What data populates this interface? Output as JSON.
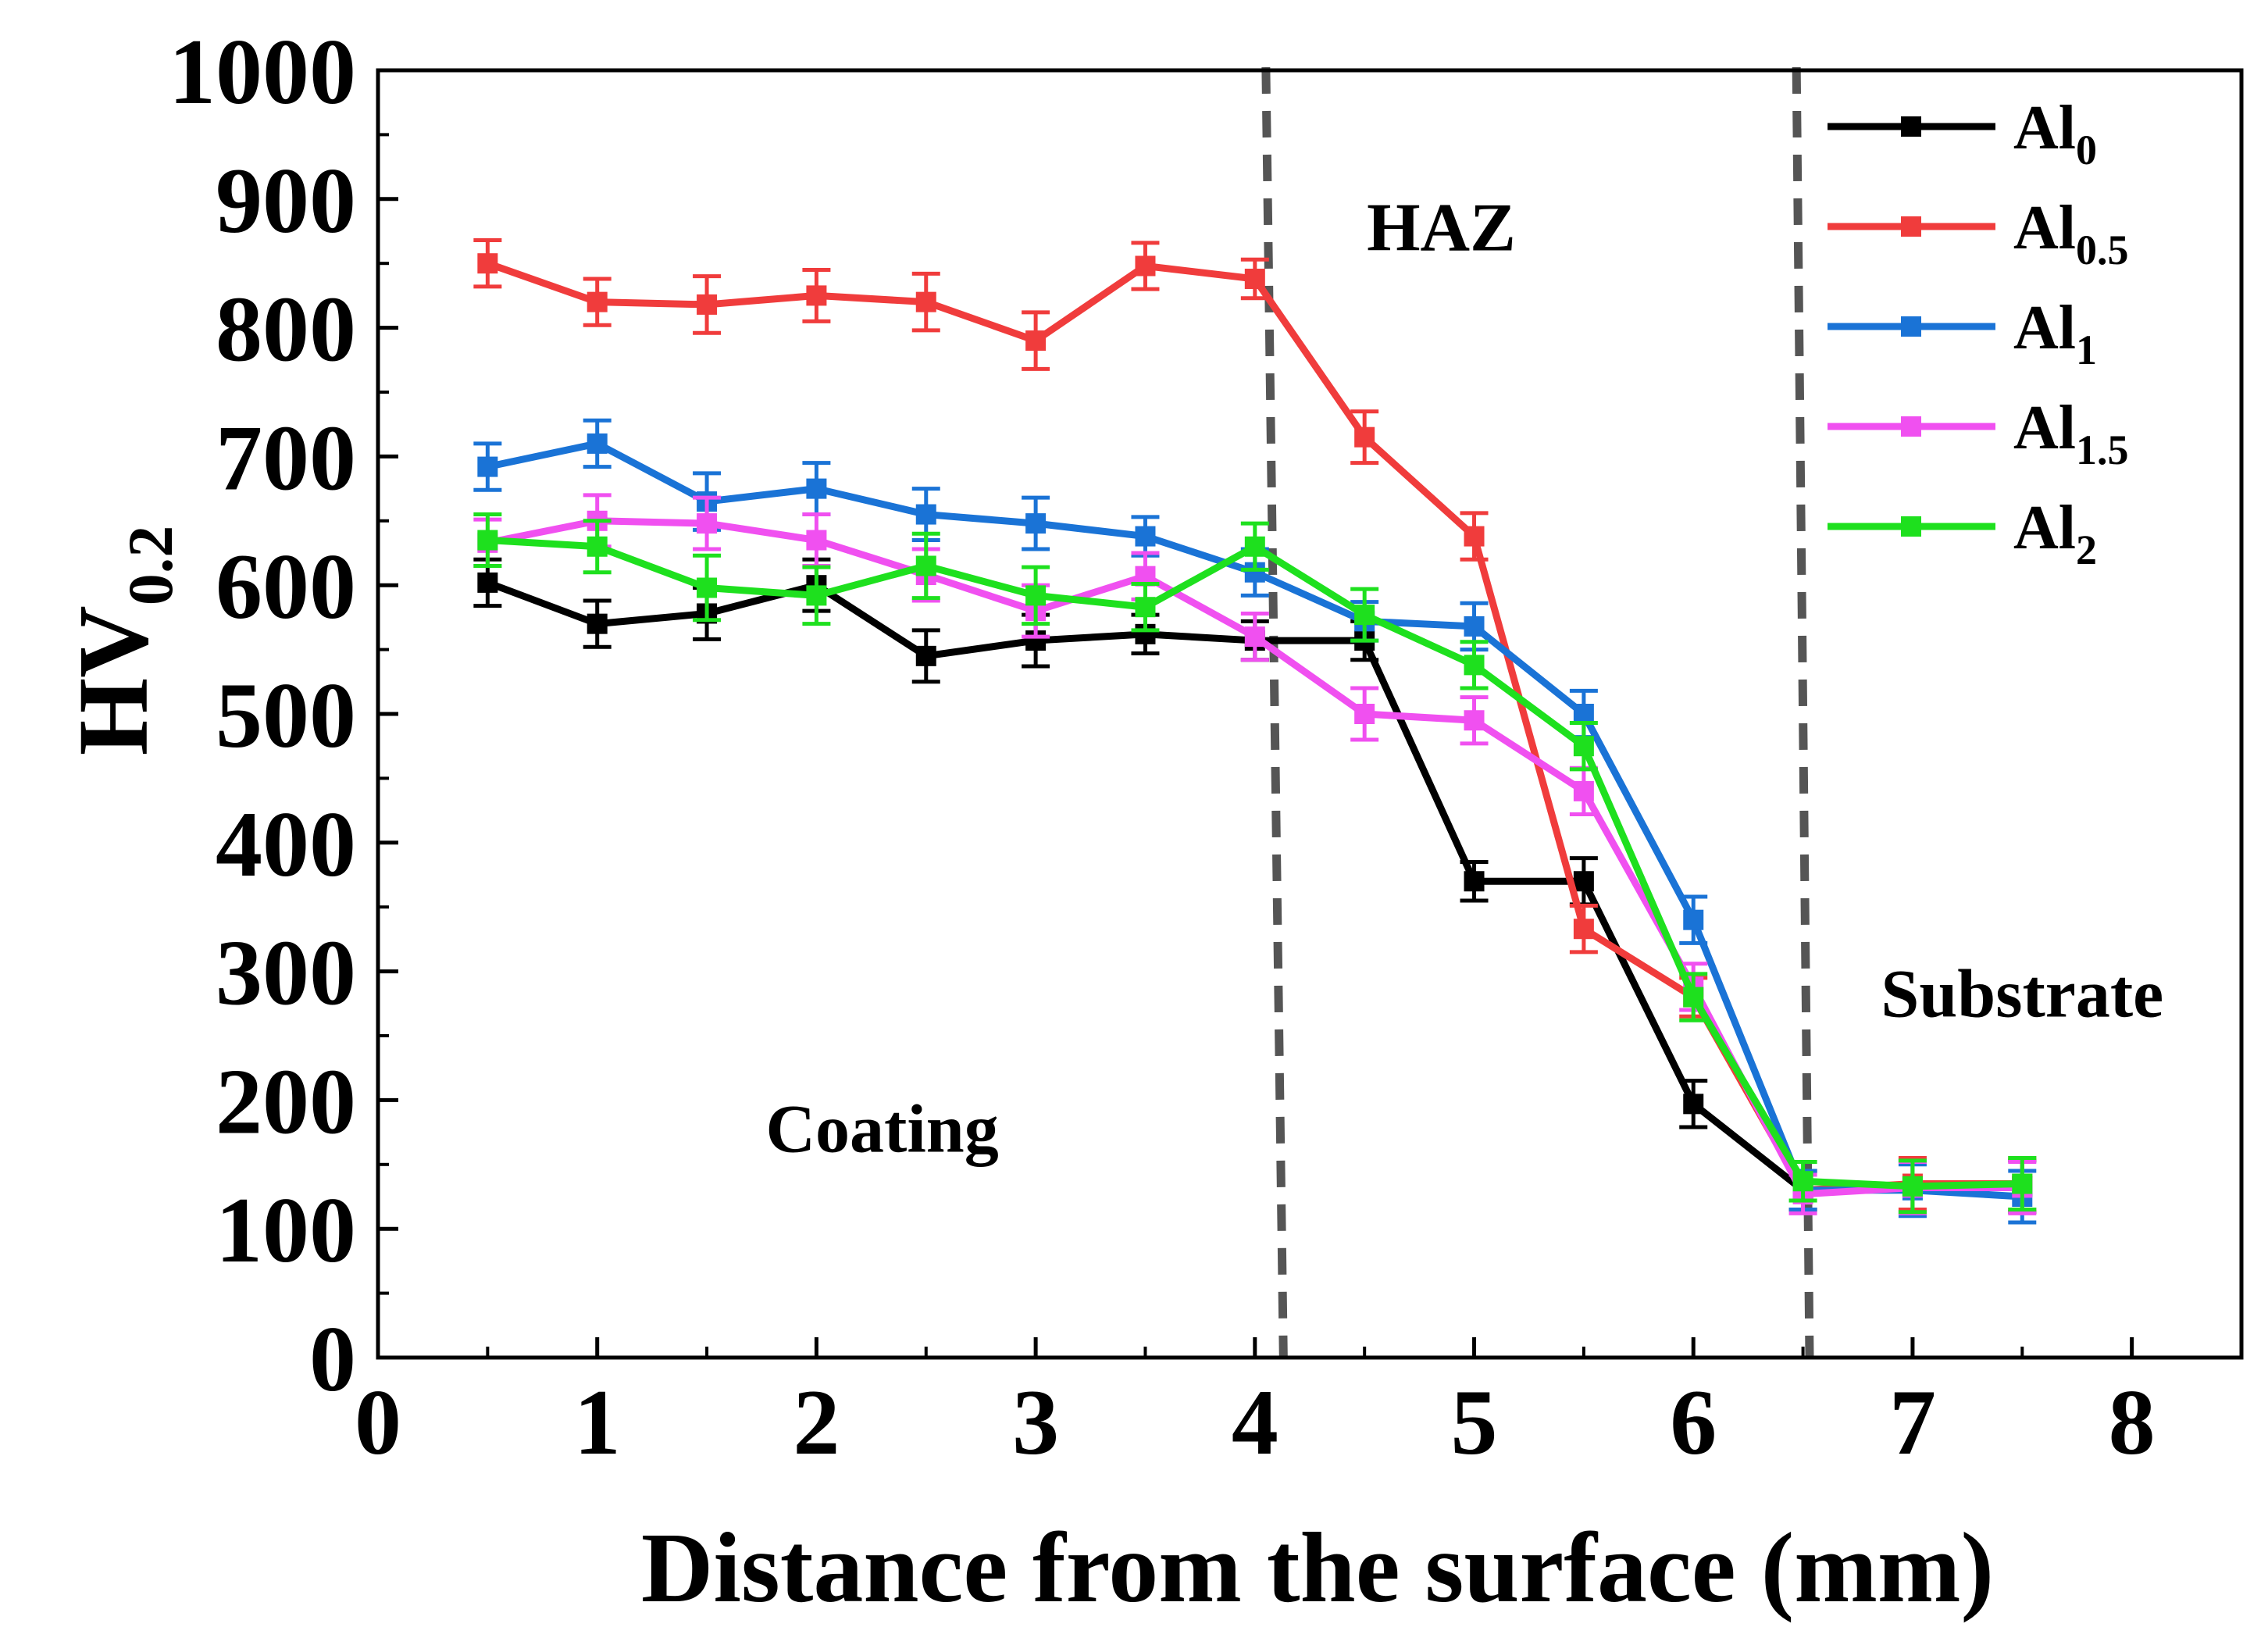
{
  "chart_data": {
    "type": "line",
    "title": "",
    "xlabel": "Distance from the surface (mm)",
    "ylabel": {
      "main": "HV",
      "sub": "0.2"
    },
    "xlim": [
      0,
      8.5
    ],
    "ylim": [
      0,
      1000
    ],
    "x_ticks": [
      0,
      1,
      2,
      3,
      4,
      5,
      6,
      7,
      8
    ],
    "x_tick_labels": [
      "0",
      "1",
      "2",
      "3",
      "4",
      "5",
      "6",
      "7",
      "8"
    ],
    "y_ticks": [
      0,
      100,
      200,
      300,
      400,
      500,
      600,
      700,
      800,
      900,
      1000
    ],
    "y_tick_labels": [
      "0",
      "100",
      "200",
      "300",
      "400",
      "500",
      "600",
      "700",
      "800",
      "900",
      "1000"
    ],
    "grid": false,
    "legend_position": "top-right",
    "region_labels": [
      {
        "text": "Coating",
        "x": 2.3,
        "y": 160
      },
      {
        "text": "HAZ",
        "x": 4.85,
        "y": 860
      },
      {
        "text": "Substrate",
        "x": 7.5,
        "y": 265
      }
    ],
    "boundaries": [
      {
        "x_top": 4.05,
        "x_bottom": 4.13
      },
      {
        "x_top": 6.47,
        "x_bottom": 6.53
      }
    ],
    "series": [
      {
        "name": "Al",
        "subscript": "0",
        "color": "#000000",
        "x": [
          0.5,
          1,
          1.5,
          2,
          2.5,
          3,
          3.5,
          4,
          4.5,
          5,
          5.5,
          6,
          6.5,
          7,
          7.5
        ],
        "values": [
          602,
          570,
          578,
          600,
          545,
          557,
          562,
          557,
          557,
          370,
          370,
          197,
          130,
          133,
          133
        ],
        "errors": [
          18,
          18,
          20,
          20,
          20,
          20,
          15,
          15,
          15,
          15,
          18,
          18,
          15,
          20,
          20
        ]
      },
      {
        "name": "Al",
        "subscript": "0.5",
        "color": "#f03c3c",
        "x": [
          0.5,
          1,
          1.5,
          2,
          2.5,
          3,
          3.5,
          4,
          4.5,
          5,
          5.5,
          6,
          6.5,
          7,
          7.5
        ],
        "values": [
          850,
          820,
          818,
          825,
          820,
          790,
          848,
          838,
          715,
          638,
          333,
          280,
          130,
          135,
          135
        ],
        "errors": [
          18,
          18,
          22,
          20,
          22,
          22,
          18,
          15,
          20,
          18,
          18,
          15,
          15,
          20,
          20
        ]
      },
      {
        "name": "Al",
        "subscript": "1",
        "color": "#1a73d6",
        "x": [
          0.5,
          1,
          1.5,
          2,
          2.5,
          3,
          3.5,
          4,
          4.5,
          5,
          5.5,
          6,
          6.5,
          7,
          7.5
        ],
        "values": [
          692,
          710,
          665,
          675,
          655,
          648,
          638,
          610,
          572,
          568,
          500,
          340,
          130,
          130,
          125
        ],
        "errors": [
          18,
          18,
          22,
          20,
          20,
          20,
          15,
          18,
          15,
          18,
          18,
          18,
          15,
          20,
          20
        ]
      },
      {
        "name": "Al",
        "subscript": "1.5",
        "color": "#f050f0",
        "x": [
          0.5,
          1,
          1.5,
          2,
          2.5,
          3,
          3.5,
          4,
          4.5,
          5,
          5.5,
          6,
          6.5,
          7,
          7.5
        ],
        "values": [
          633,
          650,
          648,
          635,
          608,
          580,
          607,
          560,
          500,
          495,
          440,
          288,
          127,
          132,
          132
        ],
        "errors": [
          18,
          20,
          20,
          20,
          20,
          20,
          18,
          18,
          20,
          18,
          18,
          18,
          15,
          20,
          20
        ]
      },
      {
        "name": "Al",
        "subscript": "2",
        "color": "#1ee01e",
        "x": [
          0.5,
          1,
          1.5,
          2,
          2.5,
          3,
          3.5,
          4,
          4.5,
          5,
          5.5,
          6,
          6.5,
          7,
          7.5
        ],
        "values": [
          635,
          630,
          598,
          592,
          615,
          592,
          583,
          630,
          577,
          538,
          475,
          280,
          137,
          133,
          135
        ],
        "errors": [
          20,
          20,
          25,
          22,
          25,
          22,
          18,
          18,
          20,
          18,
          18,
          18,
          15,
          20,
          20
        ]
      }
    ]
  }
}
